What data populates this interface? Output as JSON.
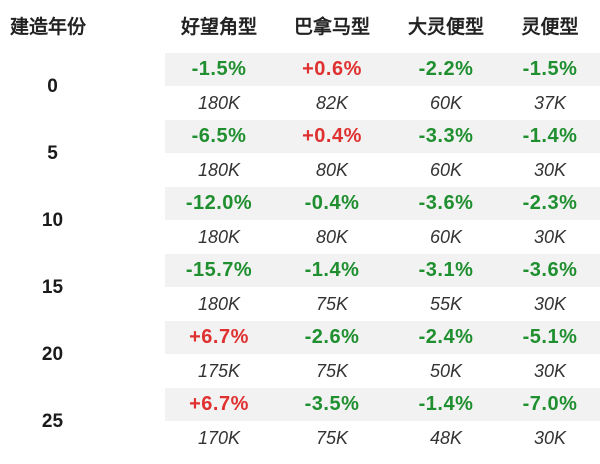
{
  "header": {
    "age_label": "建造年份",
    "models": [
      "好望角型",
      "巴拿马型",
      "大灵便型",
      "灵便型"
    ]
  },
  "colors": {
    "positive": "#e03131",
    "negative": "#1f8f2f",
    "shade": "#f2f2f2"
  },
  "rows": [
    {
      "age": "0",
      "changes": [
        "-1.5%",
        "+0.6%",
        "-2.2%",
        "-1.5%"
      ],
      "values": [
        "180K",
        "82K",
        "60K",
        "37K"
      ]
    },
    {
      "age": "5",
      "changes": [
        "-6.5%",
        "+0.4%",
        "-3.3%",
        "-1.4%"
      ],
      "values": [
        "180K",
        "80K",
        "60K",
        "30K"
      ]
    },
    {
      "age": "10",
      "changes": [
        "-12.0%",
        "-0.4%",
        "-3.6%",
        "-2.3%"
      ],
      "values": [
        "180K",
        "80K",
        "60K",
        "30K"
      ]
    },
    {
      "age": "15",
      "changes": [
        "-15.7%",
        "-1.4%",
        "-3.1%",
        "-3.6%"
      ],
      "values": [
        "180K",
        "75K",
        "55K",
        "30K"
      ]
    },
    {
      "age": "20",
      "changes": [
        "+6.7%",
        "-2.6%",
        "-2.4%",
        "-5.1%"
      ],
      "values": [
        "175K",
        "75K",
        "50K",
        "30K"
      ]
    },
    {
      "age": "25",
      "changes": [
        "+6.7%",
        "-3.5%",
        "-1.4%",
        "-7.0%"
      ],
      "values": [
        "170K",
        "75K",
        "48K",
        "30K"
      ]
    }
  ]
}
